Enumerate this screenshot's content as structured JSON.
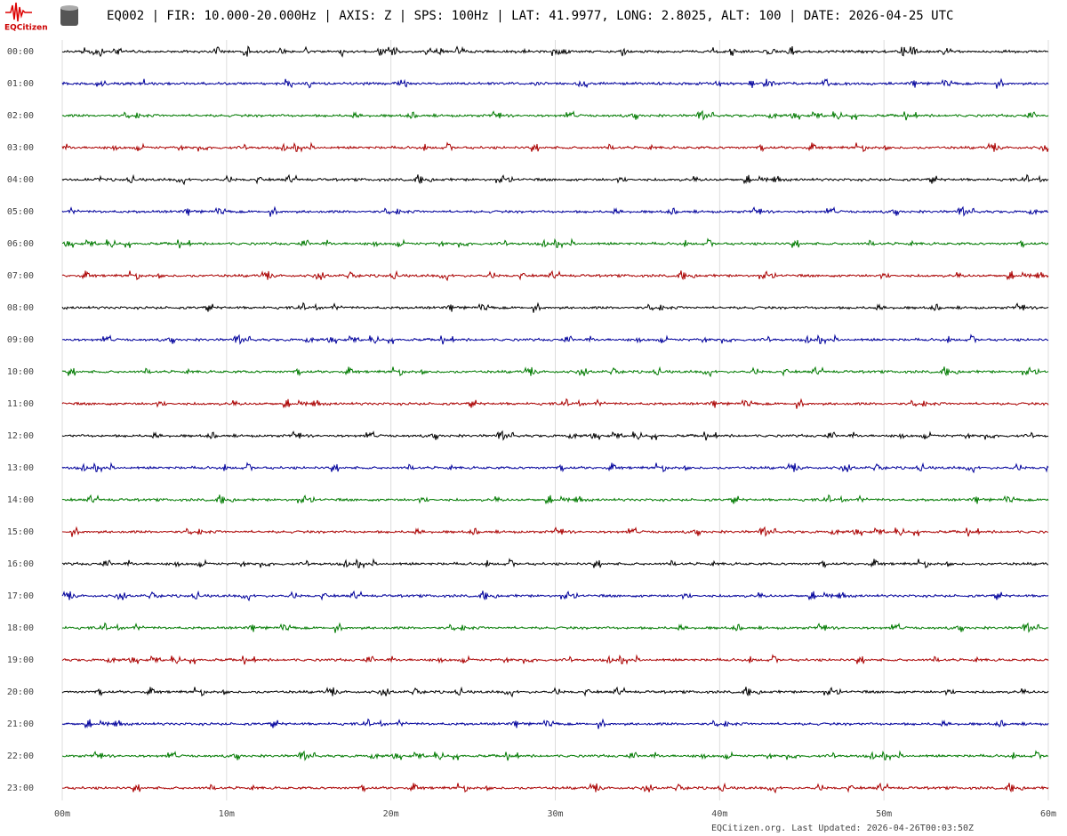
{
  "chart_data": {
    "type": "helicorder",
    "title": "EQ002 | FIR: 10.000-20.000Hz | AXIS: Z | SPS: 100Hz | LAT: 41.9977, LONG: 2.8025, ALT: 100 | DATE: 2026-04-25 UTC",
    "logo": "EQCitizen",
    "footer": "EQCitizen.org. Last Updated: 2026-04-26T00:03:50Z",
    "categories": [
      "00:00",
      "01:00",
      "02:00",
      "03:00",
      "04:00",
      "05:00",
      "06:00",
      "07:00",
      "08:00",
      "09:00",
      "10:00",
      "11:00",
      "12:00",
      "13:00",
      "14:00",
      "15:00",
      "16:00",
      "17:00",
      "18:00",
      "19:00",
      "20:00",
      "21:00",
      "22:00",
      "23:00"
    ],
    "colors": [
      "#000000",
      "#00009b",
      "#007a00",
      "#aa0000"
    ],
    "xlim": [
      0,
      60
    ],
    "xticks": [
      {
        "value": 0,
        "label": "00m"
      },
      {
        "value": 10,
        "label": "10m"
      },
      {
        "value": 20,
        "label": "20m"
      },
      {
        "value": 30,
        "label": "30m"
      },
      {
        "value": 40,
        "label": "40m"
      },
      {
        "value": 50,
        "label": "50m"
      },
      {
        "value": 60,
        "label": "60m"
      }
    ],
    "grid": true
  }
}
